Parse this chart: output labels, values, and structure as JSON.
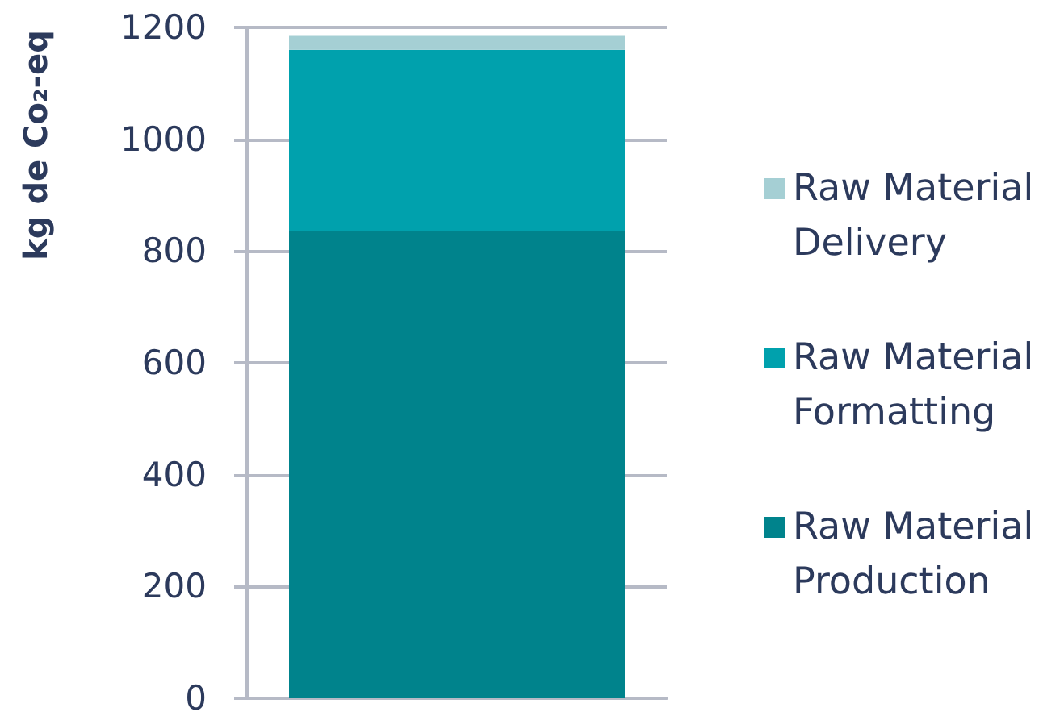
{
  "chart_data": {
    "type": "bar",
    "ylabel": "kg de Co₂-eq",
    "categories": [
      null
    ],
    "series": [
      {
        "name": "Raw Material Production",
        "color": "#00838c",
        "values": [
          835
        ]
      },
      {
        "name": "Raw Material Formatting",
        "color": "#00a1ad",
        "values": [
          325
        ]
      },
      {
        "name": "Raw Material Delivery",
        "color": "#a5cfd4",
        "values": [
          25
        ]
      }
    ],
    "stacked": true,
    "ylim": [
      0,
      1200
    ],
    "yticks": [
      0,
      200,
      400,
      600,
      800,
      1000,
      1200
    ],
    "grid": "y",
    "legend": "right"
  }
}
